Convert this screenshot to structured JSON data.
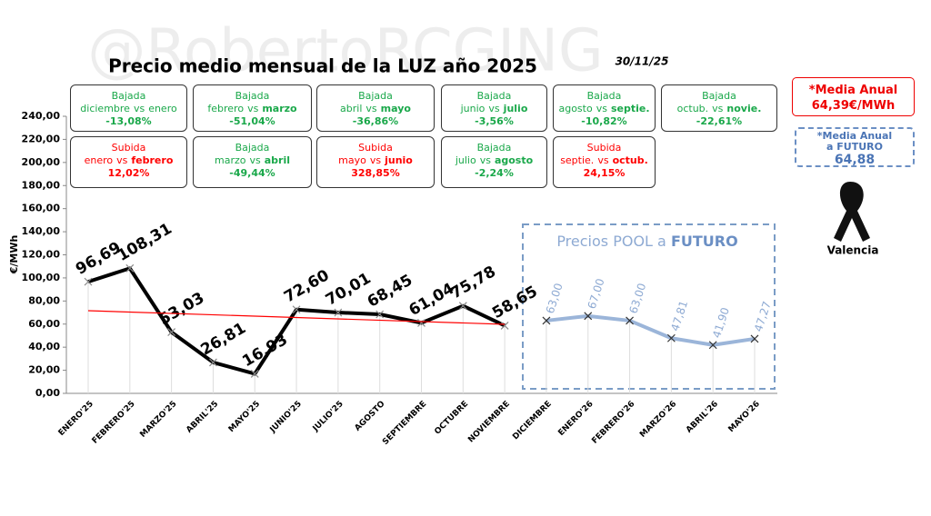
{
  "chart_data": {
    "type": "line",
    "title": "Precio medio mensual de la LUZ año 2025",
    "date": "30/11/25",
    "watermark": "@RobertoRCGING",
    "ylabel": "€/MWh",
    "categories": [
      "ENERO'25",
      "FEBRERO'25",
      "MARZO'25",
      "ABRIL'25",
      "MAYO'25",
      "JUNIO'25",
      "JULIO'25",
      "AGOSTO",
      "SEPTIEMBRE",
      "OCTUBRE",
      "NOVIEMBRE",
      "DICIEMBRE",
      "ENERO'26",
      "FEBRERO'26",
      "MARZO'26",
      "ABRIL'26",
      "MAYO'26"
    ],
    "ylim": [
      0,
      240
    ],
    "yticks": [
      {
        "value": 0,
        "label": "0,00"
      },
      {
        "value": 20,
        "label": "20,00"
      },
      {
        "value": 40,
        "label": "40,00"
      },
      {
        "value": 60,
        "label": "60,00"
      },
      {
        "value": 80,
        "label": "80,00"
      },
      {
        "value": 100,
        "label": "100,00"
      },
      {
        "value": 120,
        "label": "120,00"
      },
      {
        "value": 140,
        "label": "140,00"
      },
      {
        "value": 160,
        "label": "160,00"
      },
      {
        "value": 180,
        "label": "180,00"
      },
      {
        "value": 200,
        "label": "200,00"
      },
      {
        "value": 220,
        "label": "220,00"
      },
      {
        "value": 240,
        "label": "240,00"
      }
    ],
    "series": [
      {
        "color": "#000000",
        "label_color": "#000000",
        "values": [
          96.69,
          108.31,
          53.03,
          26.81,
          16.93,
          72.6,
          70.01,
          68.45,
          61.04,
          75.78,
          58.65,
          null,
          null,
          null,
          null,
          null,
          null
        ],
        "value_labels": [
          "96,69",
          "108,31",
          "53,03",
          "26,81",
          "16,93",
          "72,60",
          "70,01",
          "68,45",
          "61,04",
          "75,78",
          "58,65",
          null,
          null,
          null,
          null,
          null,
          null
        ]
      },
      {
        "color": "#9bb5d9",
        "label_color": "#8eaad3",
        "values": [
          null,
          null,
          null,
          null,
          null,
          null,
          null,
          null,
          null,
          null,
          null,
          63.0,
          67.0,
          63.0,
          47.81,
          41.9,
          47.27
        ],
        "value_labels": [
          null,
          null,
          null,
          null,
          null,
          null,
          null,
          null,
          null,
          null,
          null,
          "63,00",
          "67,00",
          "63,00",
          "47,81",
          "41,90",
          "47,27"
        ]
      }
    ],
    "trendline": {
      "color": "#ff0000",
      "start": 71.6,
      "end": 59.8
    },
    "future_box": {
      "title": "Precios POOL a",
      "highlight": "FUTURO"
    },
    "vs": "vs",
    "comparisons": [
      {
        "kind": "Bajada",
        "color": "#1aa84a",
        "a": "diciembre",
        "b": "enero",
        "b_bold": false,
        "pct": "-13,08%"
      },
      {
        "kind": "Bajada",
        "color": "#1aa84a",
        "a": "febrero",
        "b": "marzo",
        "b_bold": true,
        "pct": "-51,04%"
      },
      {
        "kind": "Bajada",
        "color": "#1aa84a",
        "a": "abril",
        "b": "mayo",
        "b_bold": true,
        "pct": "-36,86%"
      },
      {
        "kind": "Bajada",
        "color": "#1aa84a",
        "a": "junio",
        "b": "julio",
        "b_bold": true,
        "pct": "-3,56%"
      },
      {
        "kind": "Bajada",
        "color": "#1aa84a",
        "a": "agosto",
        "b": "septie.",
        "b_bold": true,
        "pct": "-10,82%"
      },
      {
        "kind": "Bajada",
        "color": "#1aa84a",
        "a": "octub.",
        "b": "novie.",
        "b_bold": true,
        "pct": "-22,61%"
      },
      {
        "kind": "Subida",
        "color": "#ff0000",
        "a": "enero",
        "b": "febrero",
        "b_bold": true,
        "pct": "12,02%"
      },
      {
        "kind": "Bajada",
        "color": "#1aa84a",
        "a": "marzo",
        "b": "abril",
        "b_bold": true,
        "pct": "-49,44%"
      },
      {
        "kind": "Subida",
        "color": "#ff0000",
        "a": "mayo",
        "b": "junio",
        "b_bold": true,
        "pct": "328,85%"
      },
      {
        "kind": "Bajada",
        "color": "#1aa84a",
        "a": "julio",
        "b": "agosto",
        "b_bold": true,
        "pct": "-2,24%"
      },
      {
        "kind": "Subida",
        "color": "#ff0000",
        "a": "septie.",
        "b": "octub.",
        "b_bold": true,
        "pct": "24,15%"
      }
    ],
    "annual": {
      "label": "*Media Anual",
      "value": "64,39€/MWh"
    },
    "future_annual": {
      "label1": "*Media Anual",
      "label2": "a FUTURO",
      "value": "64,88"
    },
    "city": "Valencia"
  }
}
